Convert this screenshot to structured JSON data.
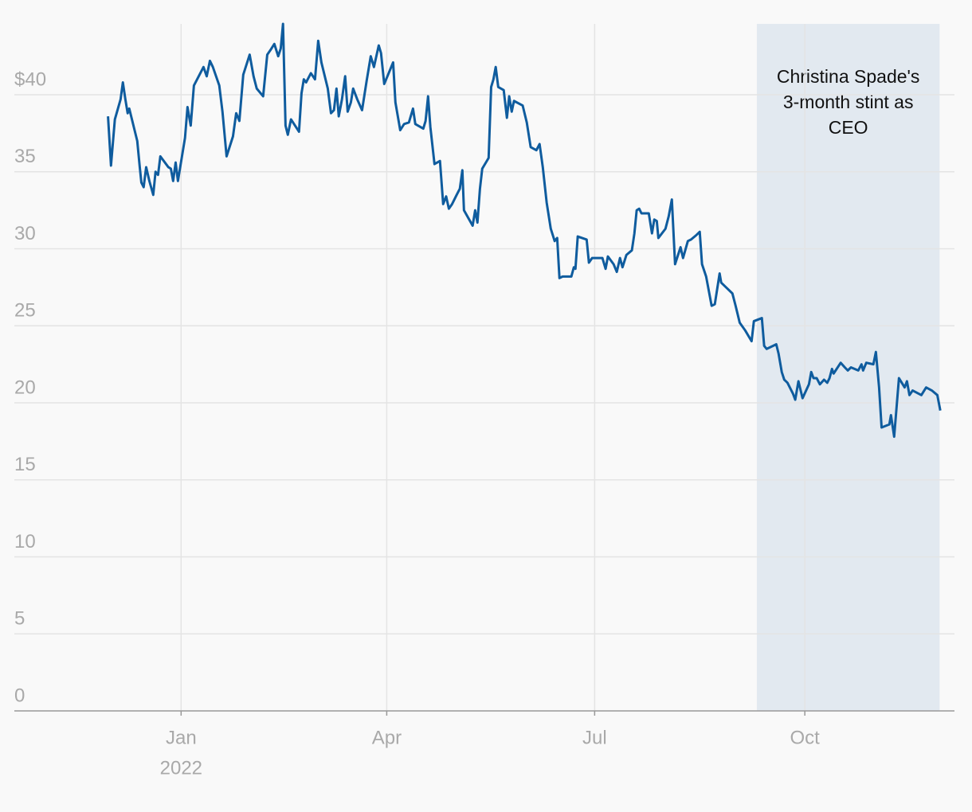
{
  "chart_data": {
    "type": "line",
    "x": [
      -32,
      -30.7,
      -29,
      -26.5,
      -25.5,
      -24.4,
      -23.4,
      -22.7,
      -19.2,
      -18.1,
      -17.4,
      -16.4,
      -15.3,
      -13.9,
      -12.2,
      -11.2,
      -10.1,
      -9.1,
      -5.6,
      -4.5,
      -3.5,
      -2.4,
      -1.4,
      1.7,
      2.8,
      4.2,
      5.6,
      8.4,
      9.8,
      11.2,
      12.6,
      13.9,
      16.7,
      18.1,
      19.9,
      22.7,
      24.1,
      25.5,
      27.2,
      30,
      31.7,
      33.1,
      35.9,
      37.7,
      39.1,
      40.8,
      42.5,
      43.6,
      44.6,
      45.7,
      46.7,
      48.1,
      51.6,
      52.7,
      53.7,
      54.7,
      56.8,
      58.6,
      60,
      61.4,
      64.2,
      65.6,
      66.9,
      68,
      69,
      70.4,
      71.8,
      72.9,
      74.3,
      75.3,
      77.1,
      79.2,
      81.2,
      83,
      84.4,
      86.5,
      87.5,
      88.9,
      90.3,
      92.8,
      93.8,
      95.9,
      97.6,
      99.7,
      101.5,
      102.5,
      106,
      107,
      108.1,
      109.1,
      110.9,
      113.3,
      114.7,
      116,
      117.2,
      118.6,
      120.6,
      122,
      123.1,
      123.8,
      127.6,
      128.7,
      129.7,
      130.8,
      131.8,
      134.6,
      135.7,
      136.7,
      137.7,
      138.8,
      141.2,
      142.6,
      143.6,
      144.7,
      145.7,
      149.5,
      151.3,
      153,
      155.5,
      156.9,
      158.3,
      160,
      161.8,
      163.5,
      164.6,
      165.6,
      167,
      170.8,
      171.9,
      172.6,
      173.6,
      177.5,
      178.5,
      179.9,
      184.4,
      185.8,
      186.8,
      189.3,
      190.7,
      192.1,
      193.2,
      194.9,
      197.3,
      198.4,
      199.4,
      200.5,
      201.5,
      204.7,
      206.1,
      207.1,
      208.2,
      208.9,
      212,
      213.4,
      214.8,
      216.2,
      218.6,
      219.7,
      221.8,
      223.2,
      225.6,
      227,
      228,
      229.8,
      232.2,
      233.6,
      235.7,
      236.4,
      239.2,
      241.3,
      242.7,
      244.5,
      246.9,
      249.7,
      250.7,
      254.2,
      255.2,
      256.3,
      257.7,
      260.5,
      261.5,
      262.9,
      264,
      265.4,
      267.8,
      268.8,
      270.2,
      272,
      274.8,
      275.8,
      276.8,
      278.2,
      279.6,
      281.4,
      282.8,
      283.8,
      284.9,
      285.6,
      288.7,
      290.5,
      291.8,
      293.2,
      296.4,
      297.8,
      298.5,
      299.9,
      303,
      304.1,
      305.5,
      306.6,
      310,
      310.7,
      312.1,
      314.2,
      316.7,
      317.7,
      318.8,
      320.2,
      324,
      326.1,
      328.6,
      331,
      332.3
    ],
    "values": [
      38.6,
      35.4,
      38.4,
      39.7,
      40.8,
      39.7,
      38.8,
      39.1,
      37,
      35.3,
      34.3,
      34,
      35.3,
      34.4,
      33.5,
      35,
      34.8,
      36,
      35.3,
      35.2,
      34.4,
      35.6,
      34.4,
      37.2,
      39.2,
      38,
      40.6,
      41.4,
      41.8,
      41.2,
      42.2,
      41.8,
      40.6,
      38.9,
      36,
      37.3,
      38.8,
      38.3,
      41.3,
      42.6,
      41.2,
      40.4,
      39.9,
      42.6,
      42.9,
      43.3,
      42.5,
      43,
      44.6,
      38,
      37.4,
      38.4,
      37.6,
      40.1,
      41,
      40.8,
      41.4,
      41,
      43.5,
      42.1,
      40.4,
      38.8,
      39,
      40.4,
      38.6,
      39.7,
      41.2,
      38.9,
      39.5,
      40.4,
      39.7,
      39,
      40.9,
      42.5,
      41.8,
      43.2,
      42.7,
      40.7,
      41.2,
      42.1,
      39.5,
      37.7,
      38.1,
      38.2,
      39.1,
      38.1,
      37.8,
      38.3,
      39.9,
      37.9,
      35.5,
      35.7,
      32.9,
      33.4,
      32.6,
      32.9,
      33.5,
      33.9,
      35.1,
      32.5,
      31.5,
      32.5,
      31.7,
      33.9,
      35.2,
      35.9,
      40.5,
      41,
      41.8,
      40.5,
      40.3,
      38.5,
      39.9,
      38.9,
      39.6,
      39.3,
      38.2,
      36.6,
      36.4,
      36.8,
      35.3,
      33,
      31.3,
      30.5,
      30.7,
      28.1,
      28.2,
      28.2,
      28.8,
      28.7,
      30.8,
      30.6,
      29.1,
      29.4,
      29.4,
      28.7,
      29.5,
      29,
      28.5,
      29.4,
      28.8,
      29.6,
      29.9,
      31,
      32.5,
      32.6,
      32.3,
      32.3,
      31,
      31.9,
      31.8,
      30.7,
      31.3,
      32.1,
      33.2,
      29,
      30.1,
      29.4,
      30.5,
      30.6,
      30.9,
      31.1,
      29,
      28.2,
      26.3,
      26.4,
      28.4,
      27.8,
      27.4,
      27.1,
      26.3,
      25.2,
      24.7,
      24,
      25.3,
      25.5,
      23.7,
      23.5,
      23.6,
      23.8,
      23.2,
      22,
      21.5,
      21.3,
      20.6,
      20.2,
      21.4,
      20.3,
      21.2,
      22,
      21.6,
      21.6,
      21.2,
      21.5,
      21.3,
      21.6,
      22.2,
      21.9,
      22.6,
      22.3,
      22.1,
      22.3,
      22.1,
      22.5,
      22.1,
      22.6,
      22.5,
      23.3,
      21,
      18.4,
      18.6,
      19.2,
      17.8,
      21.6,
      21,
      21.4,
      20.5,
      20.8,
      20.5,
      21,
      20.8,
      20.5,
      19.5
    ],
    "color": "#0f5c9e",
    "xlim": [
      -73,
      338.5
    ],
    "xticks": [
      {
        "value": 0,
        "label": "Jan"
      },
      {
        "value": 90,
        "label": "Apr"
      },
      {
        "value": 181,
        "label": "Jul"
      },
      {
        "value": 273,
        "label": "Oct"
      }
    ],
    "year_label": "2022",
    "ylim": [
      0,
      44.6
    ],
    "yticks": [
      0,
      5,
      10,
      15,
      20,
      25,
      30,
      35,
      {
        "value": 40,
        "label": "$40"
      }
    ],
    "grid": true,
    "highlight": {
      "x": [
        252,
        332
      ],
      "color": "#e2e9f0",
      "label": "Christina Spade's 3-month stint as CEO"
    }
  }
}
